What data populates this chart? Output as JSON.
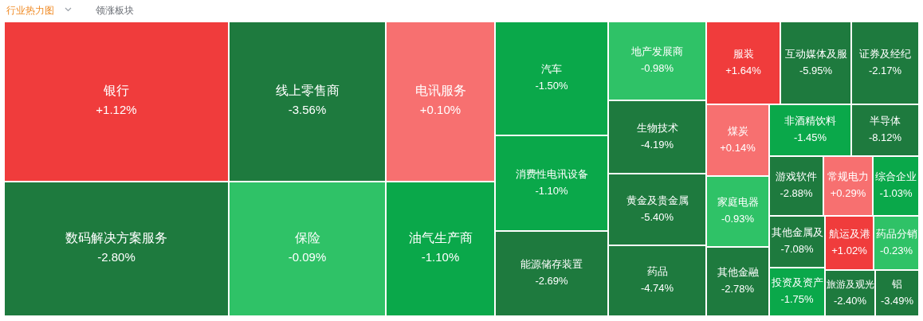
{
  "chart_data": {
    "type": "other",
    "title": "行业热力图",
    "annotations": [
      "领涨板块"
    ],
    "categories": [
      "银行",
      "数码解决方案服务",
      "线上零售商",
      "保险",
      "电讯服务",
      "油气生产商",
      "汽车",
      "消费性电讯设备",
      "能源储存装置",
      "地产发展商",
      "生物技术",
      "黄金及贵金属",
      "药品",
      "服装",
      "互动媒体及服",
      "证券及经纪",
      "煤炭",
      "非酒精饮料",
      "半导体",
      "家庭电器",
      "其他金融",
      "游戏软件",
      "常规电力",
      "综合企业",
      "其他金属及",
      "航运及港",
      "药品分销",
      "投资及资产",
      "旅游及观光",
      "铝"
    ],
    "values": [
      1.12,
      -2.8,
      -3.56,
      -0.09,
      0.1,
      -1.1,
      -1.5,
      -1.1,
      -2.69,
      -0.98,
      -4.19,
      -5.4,
      -4.74,
      1.64,
      -5.95,
      -2.17,
      0.14,
      -1.45,
      -8.12,
      -0.93,
      -2.78,
      -2.88,
      0.29,
      -1.03,
      -7.08,
      1.02,
      -0.23,
      -1.75,
      -2.4,
      -3.49
    ],
    "value_labels": [
      "+1.12%",
      "-2.80%",
      "-3.56%",
      "-0.09%",
      "+0.10%",
      "-1.10%",
      "-1.50%",
      "-1.10%",
      "-2.69%",
      "-0.98%",
      "-4.19%",
      "-5.40%",
      "-4.74%",
      "+1.64%",
      "-5.95%",
      "-2.17%",
      "+0.14%",
      "-1.45%",
      "-8.12%",
      "-0.93%",
      "-2.78%",
      "-2.88%",
      "+0.29%",
      "-1.03%",
      "-7.08%",
      "+1.02%",
      "-0.23%",
      "-1.75%",
      "-2.40%",
      "-3.49%"
    ]
  }
}
